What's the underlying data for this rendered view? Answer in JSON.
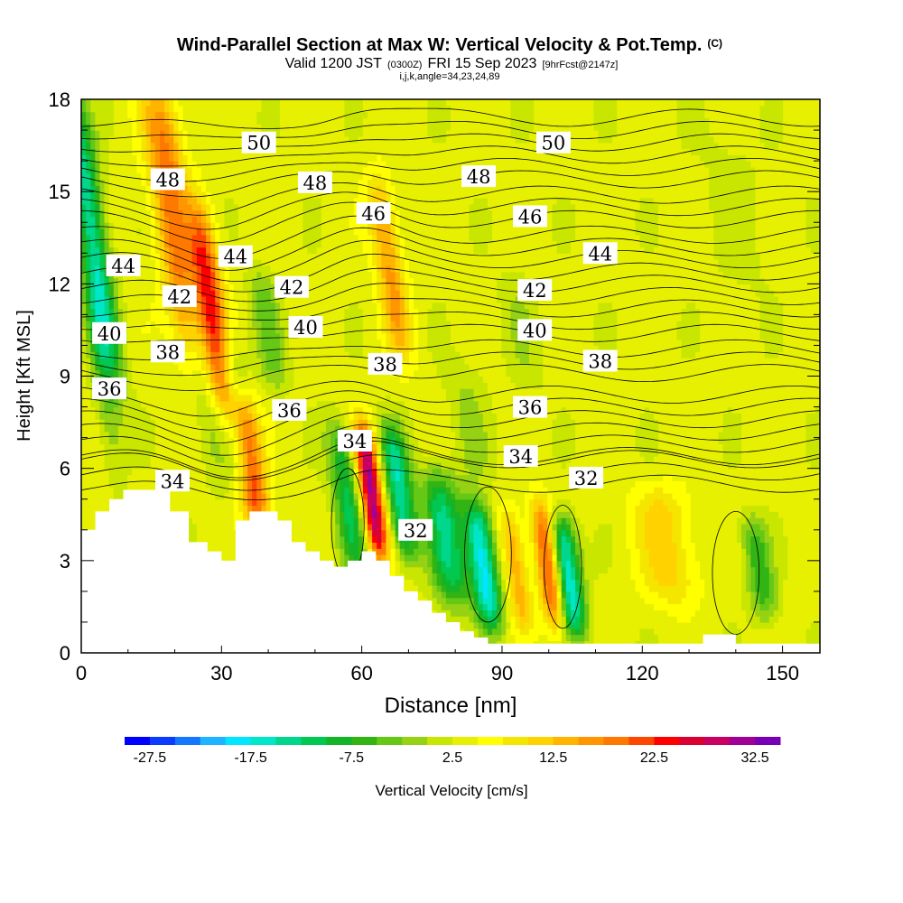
{
  "chart_data": {
    "type": "heatmap",
    "title": "Wind-Parallel Section at Max W: Vertical Velocity & Pot.Temp.",
    "title_mark": "(C)",
    "subtitle_parts": [
      "Valid 1200 JST",
      "(0300Z)",
      "FRI 15 Sep 2023",
      "[9hrFcst@2147z]"
    ],
    "subtitle2": "i,j,k,angle=34,23,24,89",
    "xlabel": "Distance [nm]",
    "ylabel": "Height [Kft MSL]",
    "xlim": [
      0,
      158
    ],
    "ylim": [
      0,
      18
    ],
    "x_ticks": [
      "0",
      "30",
      "60",
      "90",
      "120",
      "150"
    ],
    "x_tick_values": [
      0,
      30,
      60,
      90,
      120,
      150
    ],
    "y_ticks": [
      "0",
      "3",
      "6",
      "9",
      "12",
      "15",
      "18"
    ],
    "y_tick_values": [
      0,
      3,
      6,
      9,
      12,
      15,
      18
    ],
    "colorbar": {
      "label": "Vertical Velocity [cm/s]",
      "min": -30,
      "max": 35,
      "step": 2.5,
      "tick_labels": [
        "-27.5",
        "-17.5",
        "-7.5",
        "2.5",
        "12.5",
        "22.5",
        "32.5"
      ],
      "tick_values": [
        -27.5,
        -17.5,
        -7.5,
        2.5,
        12.5,
        22.5,
        32.5
      ],
      "colors": [
        "#0000ff",
        "#0a3cff",
        "#1478ff",
        "#1eb4ff",
        "#00e6ff",
        "#00e6c8",
        "#00d78c",
        "#00c850",
        "#14b428",
        "#32b414",
        "#64c814",
        "#96d214",
        "#c8e600",
        "#e6f000",
        "#ffff00",
        "#f5e600",
        "#ffd200",
        "#ffb400",
        "#ff9600",
        "#ff7800",
        "#ff4600",
        "#ff0000",
        "#dc0032",
        "#c80064",
        "#a00096",
        "#7800b4"
      ]
    },
    "background_w": 3.5,
    "updrafts": [
      {
        "x": 2.5,
        "y0": 9,
        "y1": 18,
        "w": -18,
        "width": 3
      },
      {
        "x": 4.5,
        "y0": 6,
        "y1": 12,
        "w": -5,
        "width": 2.5
      },
      {
        "x": 20,
        "y0": 10,
        "y1": 18,
        "w": 17,
        "width": 4
      },
      {
        "x": 25,
        "y0": 6,
        "y1": 15,
        "w": -5,
        "width": 3
      },
      {
        "x": 28,
        "y0": 8,
        "y1": 14,
        "w": 20,
        "width": 3
      },
      {
        "x": 33,
        "y0": 6,
        "y1": 10,
        "w": -9,
        "width": 3
      },
      {
        "x": 36,
        "y0": 4.5,
        "y1": 8,
        "w": 20,
        "width": 3
      },
      {
        "x": 40,
        "y0": 9,
        "y1": 12,
        "w": -7,
        "width": 3
      },
      {
        "x": 62,
        "y0": 3.5,
        "y1": 7,
        "w": 28,
        "width": 2.5
      },
      {
        "x": 57,
        "y0": 3,
        "y1": 7,
        "w": -14,
        "width": 3
      },
      {
        "x": 68,
        "y0": 3.5,
        "y1": 7,
        "w": -18,
        "width": 3
      },
      {
        "x": 66,
        "y0": 10,
        "y1": 15,
        "w": 12,
        "width": 3
      },
      {
        "x": 78,
        "y0": 2,
        "y1": 5.5,
        "w": -16,
        "width": 4
      },
      {
        "x": 86,
        "y0": 1.2,
        "y1": 4.5,
        "w": -22,
        "width": 3
      },
      {
        "x": 93,
        "y0": 1.2,
        "y1": 4.2,
        "w": 11,
        "width": 2.5
      },
      {
        "x": 100,
        "y0": 1.2,
        "y1": 4.5,
        "w": 20,
        "width": 2.5
      },
      {
        "x": 104,
        "y0": 1,
        "y1": 4,
        "w": -22,
        "width": 3
      },
      {
        "x": 83,
        "y0": 6,
        "y1": 9,
        "w": -4,
        "width": 4
      },
      {
        "x": 94,
        "y0": 9,
        "y1": 12,
        "w": -3,
        "width": 4
      },
      {
        "x": 145,
        "y0": 1.5,
        "y1": 4,
        "w": -10,
        "width": 3
      },
      {
        "x": 125,
        "y0": 2,
        "y1": 5,
        "w": 8,
        "width": 6
      },
      {
        "x": 140,
        "y0": 12,
        "y1": 17,
        "w": -2,
        "width": 6
      }
    ],
    "terrain_levels": [
      [
        0,
        4
      ],
      [
        3,
        4.6
      ],
      [
        6,
        5
      ],
      [
        9,
        5.3
      ],
      [
        14,
        5.3
      ],
      [
        19,
        4.6
      ],
      [
        23,
        3.6
      ],
      [
        27,
        3.3
      ],
      [
        30,
        3
      ],
      [
        33,
        4.3
      ],
      [
        36,
        4.6
      ],
      [
        42,
        4.3
      ],
      [
        45,
        3.6
      ],
      [
        48,
        3.3
      ],
      [
        51,
        3
      ],
      [
        54,
        2.8
      ],
      [
        57,
        3
      ],
      [
        60,
        3.3
      ],
      [
        63,
        3
      ],
      [
        66,
        2.5
      ],
      [
        69,
        2
      ],
      [
        72,
        1.7
      ],
      [
        75,
        1.3
      ],
      [
        78,
        1
      ],
      [
        81,
        0.7
      ],
      [
        84,
        0.5
      ],
      [
        87,
        0.3
      ],
      [
        133,
        0.6
      ],
      [
        140,
        0.3
      ],
      [
        158,
        0.3
      ]
    ],
    "isentropes": [
      {
        "value": 32,
        "base": 5.5
      },
      {
        "value": 34,
        "base": 6.4
      },
      {
        "value": 36,
        "base": 7.6
      },
      {
        "value": 38,
        "base": 9.1
      },
      {
        "value": 40,
        "base": 10.4
      },
      {
        "value": 42,
        "base": 11.6
      },
      {
        "value": 44,
        "base": 12.8
      },
      {
        "value": 46,
        "base": 14.1
      },
      {
        "value": 48,
        "base": 15.4
      },
      {
        "value": 50,
        "base": 16.6
      }
    ],
    "contour_labels": [
      {
        "text": "50",
        "x": 38,
        "y": 16.6
      },
      {
        "text": "50",
        "x": 101,
        "y": 16.6
      },
      {
        "text": "48",
        "x": 18.5,
        "y": 15.4
      },
      {
        "text": "48",
        "x": 50,
        "y": 15.3
      },
      {
        "text": "48",
        "x": 85,
        "y": 15.5
      },
      {
        "text": "46",
        "x": 62.5,
        "y": 14.3
      },
      {
        "text": "46",
        "x": 96,
        "y": 14.2
      },
      {
        "text": "44",
        "x": 9,
        "y": 12.6
      },
      {
        "text": "44",
        "x": 33,
        "y": 12.9
      },
      {
        "text": "44",
        "x": 111,
        "y": 13.0
      },
      {
        "text": "42",
        "x": 21,
        "y": 11.6
      },
      {
        "text": "42",
        "x": 45,
        "y": 11.9
      },
      {
        "text": "42",
        "x": 97,
        "y": 11.8
      },
      {
        "text": "40",
        "x": 6,
        "y": 10.4
      },
      {
        "text": "40",
        "x": 48,
        "y": 10.6
      },
      {
        "text": "40",
        "x": 97,
        "y": 10.5
      },
      {
        "text": "38",
        "x": 18.5,
        "y": 9.8
      },
      {
        "text": "38",
        "x": 65,
        "y": 9.4
      },
      {
        "text": "38",
        "x": 111,
        "y": 9.5
      },
      {
        "text": "36",
        "x": 6,
        "y": 8.6
      },
      {
        "text": "36",
        "x": 44.5,
        "y": 7.9
      },
      {
        "text": "36",
        "x": 96,
        "y": 8.0
      },
      {
        "text": "34",
        "x": 58.5,
        "y": 6.9
      },
      {
        "text": "34",
        "x": 94,
        "y": 6.4
      },
      {
        "text": "34",
        "x": 19.5,
        "y": 5.6
      },
      {
        "text": "32",
        "x": 108,
        "y": 5.7
      },
      {
        "text": "32",
        "x": 71.5,
        "y": 4.0
      }
    ]
  }
}
